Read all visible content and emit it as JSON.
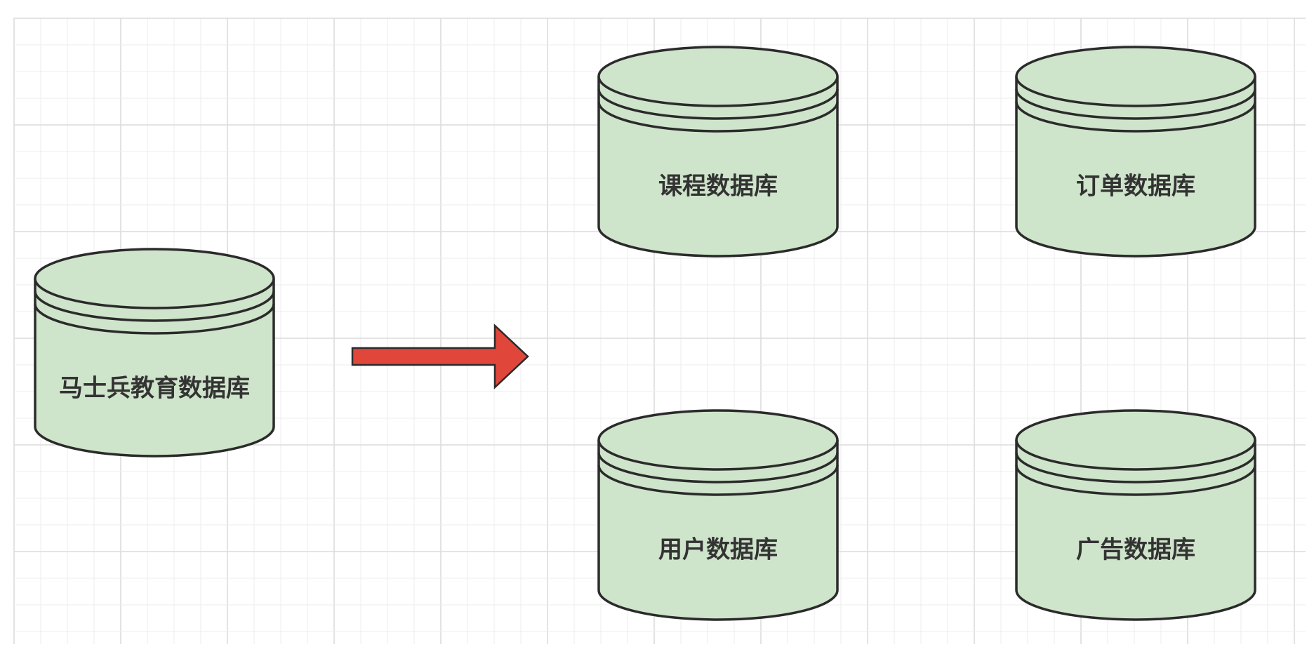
{
  "diagram": {
    "source": {
      "label": "马士兵教育数据库"
    },
    "arrow": {
      "color": "#e0473a"
    },
    "targets": [
      {
        "label": "课程数据库"
      },
      {
        "label": "订单数据库"
      },
      {
        "label": "用户数据库"
      },
      {
        "label": "广告数据库"
      }
    ]
  },
  "colors": {
    "cylinder_fill": "#cfe5cb",
    "cylinder_stroke": "#2b2b2b",
    "grid_minor": "#ececec",
    "grid_major": "#dcdcdc",
    "arrow": "#e0473a"
  }
}
